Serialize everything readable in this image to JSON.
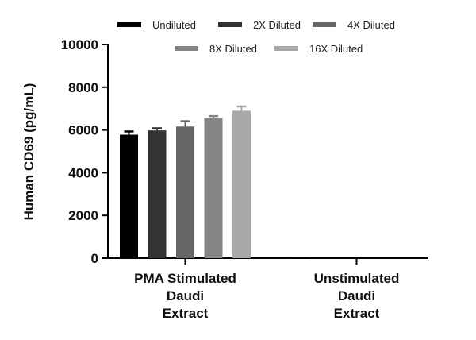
{
  "chart_data": {
    "type": "bar",
    "ylabel": "Human CD69 (pg/mL)",
    "xlabel": "",
    "ylim": [
      0,
      10000
    ],
    "yticks": [
      0,
      2000,
      4000,
      6000,
      8000,
      10000
    ],
    "categories": [
      [
        "PMA Stimulated",
        "Daudi",
        "Extract"
      ],
      [
        "Unstimulated",
        "Daudi",
        "Extract"
      ]
    ],
    "series": [
      {
        "name": "Undiluted",
        "color": "#000000",
        "values": [
          5780,
          40
        ],
        "errors": [
          150,
          0
        ]
      },
      {
        "name": "2X Diluted",
        "color": "#333333",
        "values": [
          5980,
          0
        ],
        "errors": [
          100,
          0
        ]
      },
      {
        "name": "4X Diluted",
        "color": "#666666",
        "values": [
          6160,
          0
        ],
        "errors": [
          250,
          0
        ]
      },
      {
        "name": "8X Diluted",
        "color": "#858585",
        "values": [
          6560,
          0
        ],
        "errors": [
          90,
          0
        ]
      },
      {
        "name": "16X Diluted",
        "color": "#a8a8a8",
        "values": [
          6900,
          0
        ],
        "errors": [
          200,
          0
        ]
      }
    ],
    "legend": "top",
    "grid": false
  }
}
